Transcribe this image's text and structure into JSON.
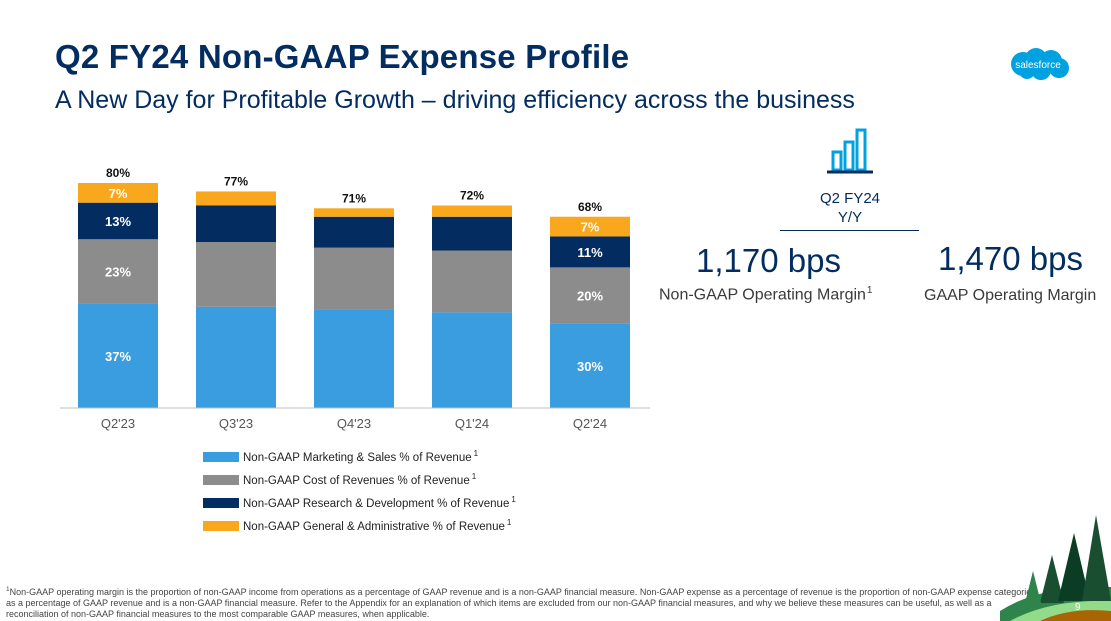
{
  "header": {
    "title": "Q2 FY24  Non-GAAP Expense Profile",
    "subtitle": "A New Day for Profitable Growth – driving efficiency across the business"
  },
  "logo": {
    "text": "salesforce",
    "color": "#00a1e0"
  },
  "chart_data": {
    "type": "bar",
    "stacked": true,
    "categories": [
      "Q2'23",
      "Q3'23",
      "Q4'23",
      "Q1'24",
      "Q2'24"
    ],
    "series": [
      {
        "name": "Non-GAAP Marketing & Sales % of Revenue",
        "footnote": "1",
        "color": "#3a9de0",
        "values": [
          37,
          36,
          35,
          34,
          30
        ],
        "labels": [
          "37%",
          "",
          "",
          "",
          "30%"
        ]
      },
      {
        "name": "Non-GAAP Cost of Revenues % of Revenue",
        "footnote": "1",
        "color": "#8c8c8c",
        "values": [
          23,
          23,
          22,
          22,
          20
        ],
        "labels": [
          "23%",
          "",
          "",
          "",
          "20%"
        ]
      },
      {
        "name": "Non-GAAP Research & Development % of Revenue",
        "footnote": "1",
        "color": "#032d60",
        "values": [
          13,
          13,
          11,
          12,
          11
        ],
        "labels": [
          "13%",
          "",
          "",
          "",
          "11%"
        ]
      },
      {
        "name": "Non-GAAP General & Administrative % of Revenue",
        "footnote": "1",
        "color": "#f9a71c",
        "values": [
          7,
          5,
          3,
          4,
          7
        ],
        "labels": [
          "7%",
          "",
          "",
          "",
          "7%"
        ]
      }
    ],
    "totals": [
      "80%",
      "77%",
      "71%",
      "72%",
      "68%"
    ],
    "ylim": [
      0,
      80
    ],
    "xlabel": "",
    "ylabel": "",
    "grid": false,
    "legend": "bottom"
  },
  "kpi": {
    "icon": "bar-chart-icon",
    "period_line1": "Q2 FY24",
    "period_line2": "Y/Y",
    "items": [
      {
        "value": "1,170 bps",
        "label": "Non-GAAP Operating Margin",
        "footnote": "1"
      },
      {
        "value": "1,470 bps",
        "label": "GAAP Operating Margin",
        "footnote": ""
      }
    ]
  },
  "footnote": {
    "marker": "1",
    "text": "Non-GAAP operating margin is the proportion of non-GAAP income from operations as a percentage of GAAP revenue and is a non-GAAP financial measure. Non-GAAP expense as a percentage of revenue is the proportion of non-GAAP expense categories as a percentage of GAAP revenue and is a non-GAAP financial measure. Refer to the Appendix for an explanation of which items are excluded from our non-GAAP financial measures, and why we believe these measures can be useful, as well as a reconciliation of non-GAAP financial measures to the most comparable GAAP measures, when applicable."
  },
  "page_number": "9"
}
